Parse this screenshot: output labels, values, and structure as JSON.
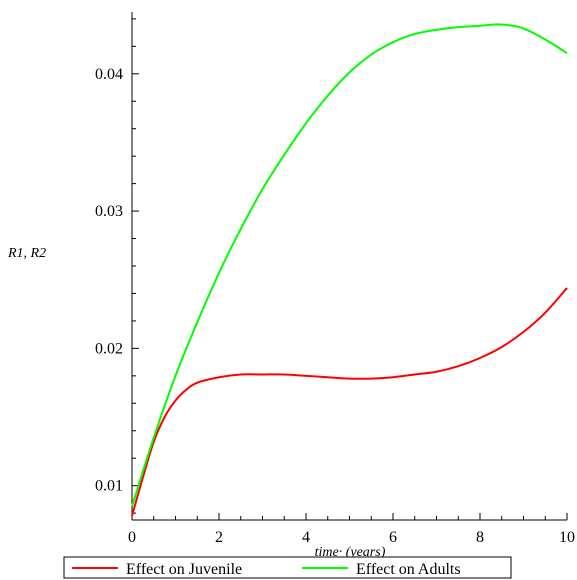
{
  "chart_data": {
    "type": "line",
    "title": "",
    "xlabel": "time· (years)",
    "ylabel": "R1, R2",
    "xlim": [
      0,
      10
    ],
    "ylim": [
      0.0075,
      0.0445
    ],
    "x_ticks": [
      0,
      2,
      4,
      6,
      8,
      10
    ],
    "x_tick_labels": [
      "0",
      "2",
      "4",
      "6",
      "8",
      "10"
    ],
    "y_ticks": [
      0.01,
      0.02,
      0.03,
      0.04
    ],
    "y_tick_labels": [
      "0.01",
      "0.02",
      "0.03",
      "0.04"
    ],
    "grid": false,
    "legend_position": "bottom",
    "series": [
      {
        "name": "Effect on Juvenile",
        "color": "#ff0000",
        "x": [
          0,
          0.25,
          0.5,
          0.75,
          1,
          1.25,
          1.5,
          2,
          2.5,
          3,
          3.5,
          4,
          4.5,
          5,
          5.5,
          6,
          6.5,
          7,
          7.5,
          8,
          8.5,
          9,
          9.5,
          10
        ],
        "y": [
          0.0078,
          0.0106,
          0.0132,
          0.015,
          0.0162,
          0.017,
          0.0175,
          0.0179,
          0.0181,
          0.0181,
          0.0181,
          0.018,
          0.0179,
          0.0178,
          0.0178,
          0.0179,
          0.0181,
          0.0183,
          0.0187,
          0.0193,
          0.0201,
          0.0212,
          0.0226,
          0.0244
        ]
      },
      {
        "name": "Effect on Adults",
        "color": "#00ff00",
        "x": [
          0,
          0.5,
          1,
          1.5,
          2,
          2.5,
          3,
          3.5,
          4,
          4.5,
          5,
          5.5,
          6,
          6.5,
          7,
          7.5,
          8,
          8.4,
          8.75,
          9,
          9.5,
          10
        ],
        "y": [
          0.0085,
          0.0135,
          0.018,
          0.0219,
          0.0255,
          0.0287,
          0.0316,
          0.0341,
          0.0364,
          0.0384,
          0.0401,
          0.0414,
          0.0423,
          0.0429,
          0.0432,
          0.0434,
          0.0435,
          0.0436,
          0.0435,
          0.0433,
          0.0425,
          0.0415
        ]
      }
    ]
  }
}
